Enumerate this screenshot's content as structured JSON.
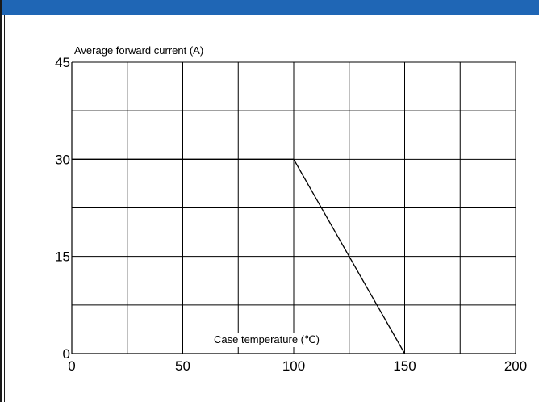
{
  "theme": {
    "bar_color": "#1f66b5",
    "grid_color": "#000000",
    "line_color": "#000000"
  },
  "chart_data": {
    "type": "line",
    "ylabel": "Average forward current (A)",
    "xlabel": "Case temperature (℃)",
    "xlim": [
      0,
      200
    ],
    "ylim": [
      0,
      45
    ],
    "x_major_ticks": [
      0,
      50,
      100,
      150,
      200
    ],
    "y_major_ticks": [
      0,
      15,
      30,
      45
    ],
    "x_tick_labels": [
      "0",
      "50",
      "100",
      "150",
      "200"
    ],
    "y_tick_labels": [
      "0",
      "15",
      "30",
      "45"
    ],
    "x_gridlines": [
      25,
      50,
      75,
      100,
      125,
      150,
      175,
      200
    ],
    "y_gridlines": [
      7.5,
      15,
      22.5,
      30,
      37.5,
      45
    ],
    "grid": true,
    "series": [
      {
        "x": [
          0,
          100,
          150
        ],
        "y": [
          30,
          30,
          0
        ]
      }
    ]
  }
}
